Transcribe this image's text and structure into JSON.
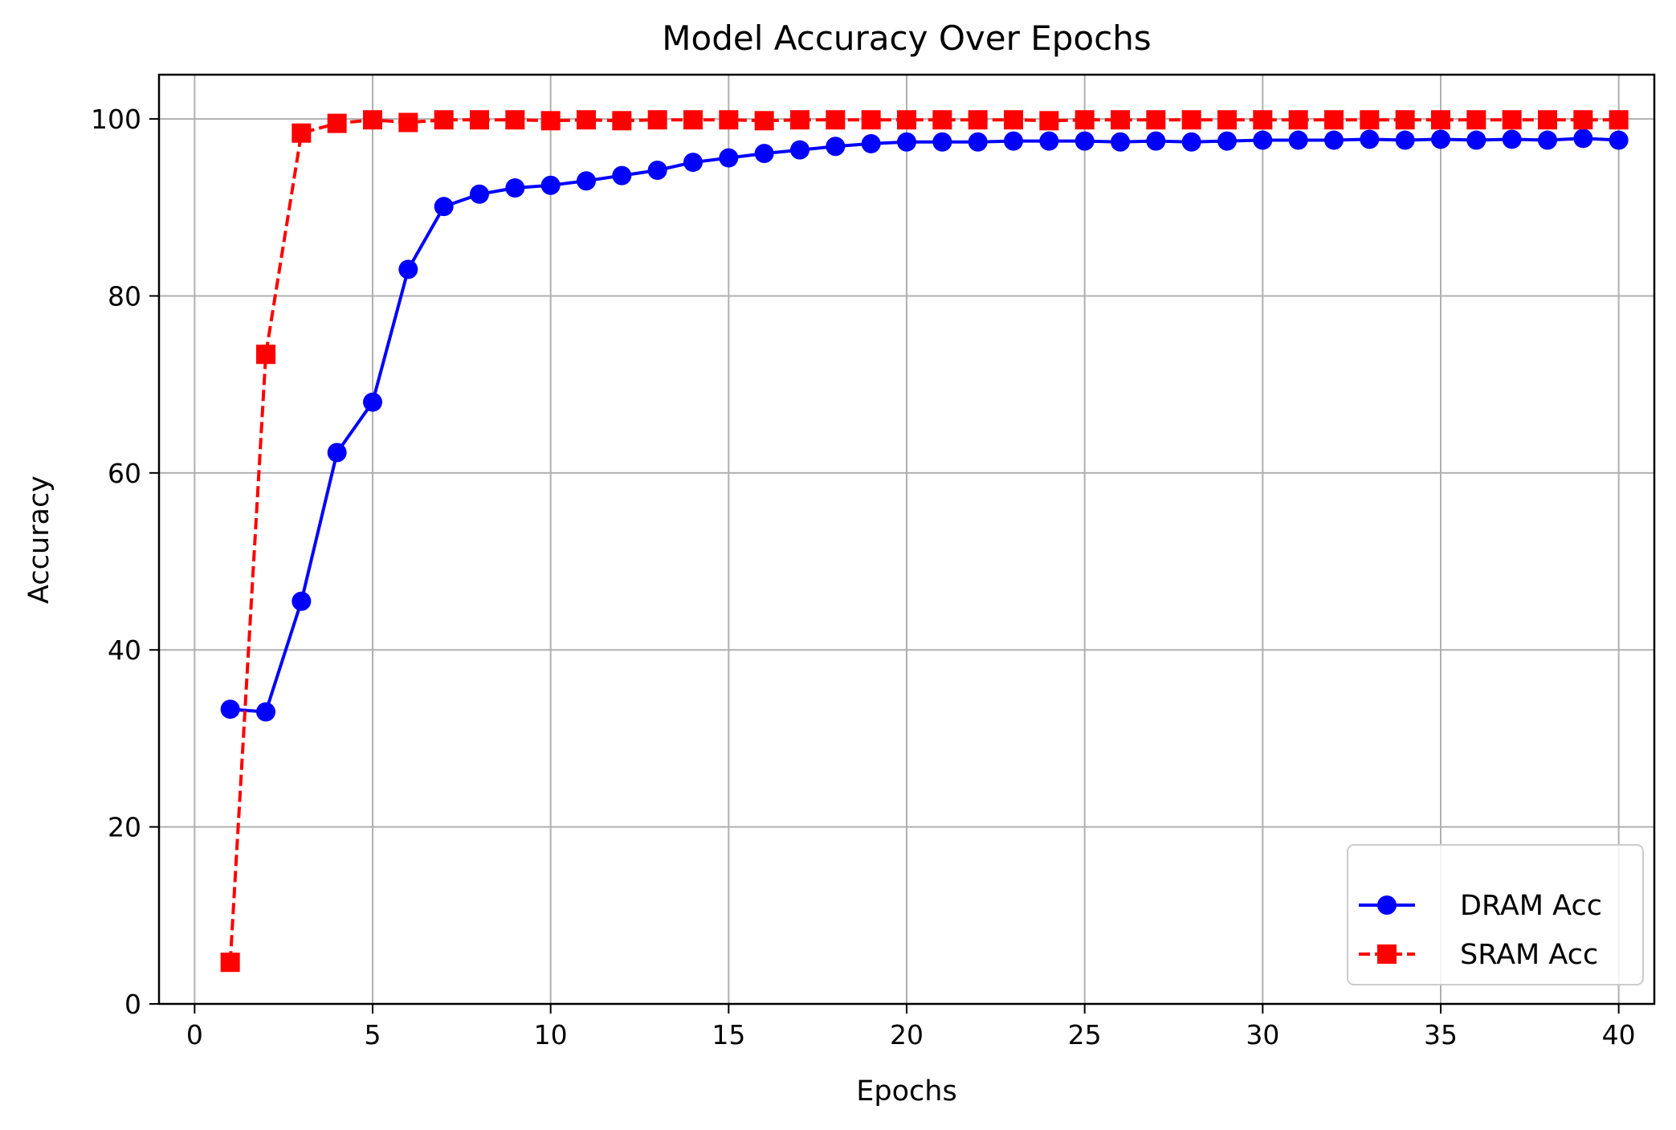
{
  "chart_data": {
    "type": "line",
    "title": "Model Accuracy Over Epochs",
    "xlabel": "Epochs",
    "ylabel": "Accuracy",
    "xlim": [
      -1,
      41
    ],
    "ylim": [
      0,
      105
    ],
    "xticks": [
      0,
      5,
      10,
      15,
      20,
      25,
      30,
      35,
      40
    ],
    "yticks": [
      0,
      20,
      40,
      60,
      80,
      100
    ],
    "grid": true,
    "legend_position": "lower-right",
    "x": [
      1,
      2,
      3,
      4,
      5,
      6,
      7,
      8,
      9,
      10,
      11,
      12,
      13,
      14,
      15,
      16,
      17,
      18,
      19,
      20,
      21,
      22,
      23,
      24,
      25,
      26,
      27,
      28,
      29,
      30,
      31,
      32,
      33,
      34,
      35,
      36,
      37,
      38,
      39,
      40
    ],
    "series": [
      {
        "name": "DRAM Acc",
        "color": "#0000ff",
        "line_style": "solid",
        "marker": "circle",
        "values": [
          33.3,
          33.0,
          45.5,
          62.3,
          68.0,
          83.0,
          90.1,
          91.5,
          92.2,
          92.5,
          93.0,
          93.6,
          94.2,
          95.1,
          95.6,
          96.1,
          96.5,
          96.9,
          97.2,
          97.4,
          97.4,
          97.4,
          97.5,
          97.5,
          97.5,
          97.4,
          97.5,
          97.4,
          97.5,
          97.6,
          97.6,
          97.6,
          97.7,
          97.6,
          97.7,
          97.6,
          97.7,
          97.6,
          97.8,
          97.6
        ]
      },
      {
        "name": "SRAM Acc",
        "color": "#ff0000",
        "line_style": "dashed",
        "marker": "square",
        "values": [
          4.7,
          73.4,
          98.4,
          99.5,
          99.9,
          99.6,
          99.9,
          99.9,
          99.9,
          99.8,
          99.9,
          99.8,
          99.9,
          99.9,
          99.9,
          99.8,
          99.9,
          99.9,
          99.9,
          99.9,
          99.9,
          99.9,
          99.9,
          99.8,
          99.9,
          99.9,
          99.9,
          99.9,
          99.9,
          99.9,
          99.9,
          99.9,
          99.9,
          99.9,
          99.9,
          99.9,
          99.9,
          99.9,
          99.9,
          99.9
        ]
      }
    ]
  }
}
